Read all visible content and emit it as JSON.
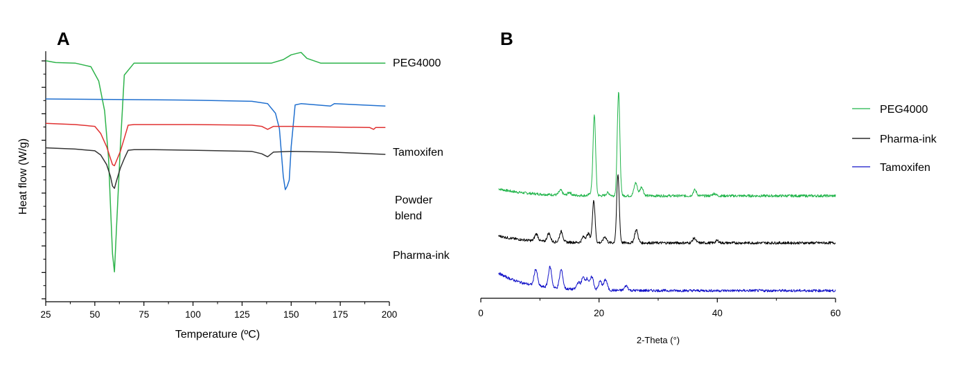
{
  "chart_data": [
    {
      "panel": "A",
      "type": "line",
      "xlabel": "Temperature (ºC)",
      "ylabel": "Heat flow (W/g)",
      "xlim": [
        25,
        200
      ],
      "xticks": [
        25,
        50,
        75,
        100,
        125,
        150,
        175,
        200
      ],
      "ytick_labels": false,
      "series": [
        {
          "name": "PEG4000",
          "color": "#2db34a",
          "x": [
            25,
            30,
            40,
            48,
            52,
            55,
            57,
            58,
            59,
            60,
            61,
            63,
            65,
            70,
            80,
            100,
            120,
            140,
            146,
            150,
            155,
            158,
            165,
            180,
            198
          ],
          "y": [
            -0.8,
            -0.95,
            -1.0,
            -1.3,
            -2.5,
            -5,
            -9,
            -13,
            -17,
            -18.5,
            -15,
            -8,
            -2,
            -1.0,
            -1.0,
            -1.0,
            -1.0,
            -1.0,
            -0.7,
            -0.3,
            -0.1,
            -0.6,
            -1.0,
            -1.0,
            -1.0
          ]
        },
        {
          "name": "Tamoxifen",
          "color": "#1f6fcf",
          "x": [
            25,
            60,
            100,
            130,
            138,
            142,
            144,
            145,
            146,
            147,
            148,
            149,
            150,
            152,
            155,
            170,
            172,
            198
          ],
          "y": [
            -4.0,
            -4.05,
            -4.1,
            -4.2,
            -4.4,
            -5.2,
            -6.5,
            -8.5,
            -10.5,
            -11.6,
            -11.3,
            -10.8,
            -8.0,
            -4.5,
            -4.4,
            -4.6,
            -4.4,
            -4.6
          ]
        },
        {
          "name": "Powder blend",
          "color": "#e03030",
          "x": [
            25,
            40,
            50,
            53,
            56,
            58,
            59,
            60,
            61,
            63,
            65,
            67,
            70,
            80,
            100,
            130,
            135,
            138,
            141,
            150,
            170,
            190,
            192,
            193,
            198
          ],
          "y": [
            -6.05,
            -6.15,
            -6.3,
            -6.9,
            -8.0,
            -9.0,
            -9.5,
            -9.6,
            -9.2,
            -8.4,
            -7.3,
            -6.2,
            -6.15,
            -6.15,
            -6.15,
            -6.2,
            -6.3,
            -6.55,
            -6.3,
            -6.3,
            -6.35,
            -6.4,
            -6.55,
            -6.4,
            -6.4
          ]
        },
        {
          "name": "Pharma-ink",
          "color": "#333333",
          "x": [
            25,
            40,
            50,
            53,
            56,
            58,
            59,
            60,
            61,
            63,
            65,
            67,
            70,
            80,
            100,
            130,
            135,
            138,
            141,
            150,
            170,
            198
          ],
          "y": [
            -8.1,
            -8.2,
            -8.35,
            -8.7,
            -9.5,
            -10.5,
            -11.3,
            -11.5,
            -10.9,
            -9.8,
            -9.0,
            -8.3,
            -8.25,
            -8.25,
            -8.3,
            -8.4,
            -8.6,
            -8.85,
            -8.45,
            -8.4,
            -8.45,
            -8.65
          ]
        }
      ]
    },
    {
      "panel": "B",
      "type": "line",
      "xlabel": "2-Theta (°)",
      "ylabel": "",
      "xlim": [
        0,
        60
      ],
      "xticks": [
        0,
        20,
        40,
        60
      ],
      "legend_position": "right",
      "series": [
        {
          "name": "PEG4000",
          "color": "#1fb449",
          "offset": 2.0,
          "base_start": 0.12,
          "peaks": [
            [
              13.5,
              0.08
            ],
            [
              15,
              0.05
            ],
            [
              18.7,
              0.05
            ],
            [
              19.2,
              1.35
            ],
            [
              21.5,
              0.05
            ],
            [
              23.3,
              1.75
            ],
            [
              26.2,
              0.22
            ],
            [
              27.2,
              0.15
            ],
            [
              36.2,
              0.1
            ],
            [
              39.5,
              0.04
            ]
          ]
        },
        {
          "name": "Pharma-ink",
          "color": "#000000",
          "offset": 1.0,
          "base_start": 0.12,
          "peaks": [
            [
              9.4,
              0.12
            ],
            [
              11.5,
              0.14
            ],
            [
              13.6,
              0.18
            ],
            [
              17.4,
              0.1
            ],
            [
              18.2,
              0.15
            ],
            [
              19.1,
              0.72
            ],
            [
              21,
              0.1
            ],
            [
              23.2,
              1.15
            ],
            [
              26.3,
              0.22
            ],
            [
              36.1,
              0.08
            ],
            [
              40,
              0.04
            ]
          ]
        },
        {
          "name": "Tamoxifen",
          "color": "#1010c8",
          "offset": 0.0,
          "base_start": 0.3,
          "peaks": [
            [
              9.3,
              0.28
            ],
            [
              11.7,
              0.35
            ],
            [
              13.6,
              0.32
            ],
            [
              16.5,
              0.12
            ],
            [
              17.3,
              0.2
            ],
            [
              18,
              0.18
            ],
            [
              18.8,
              0.22
            ],
            [
              20.2,
              0.15
            ],
            [
              21.1,
              0.18
            ],
            [
              24.6,
              0.08
            ]
          ]
        }
      ]
    }
  ],
  "panels": {
    "a_label": "A",
    "b_label": "B"
  }
}
